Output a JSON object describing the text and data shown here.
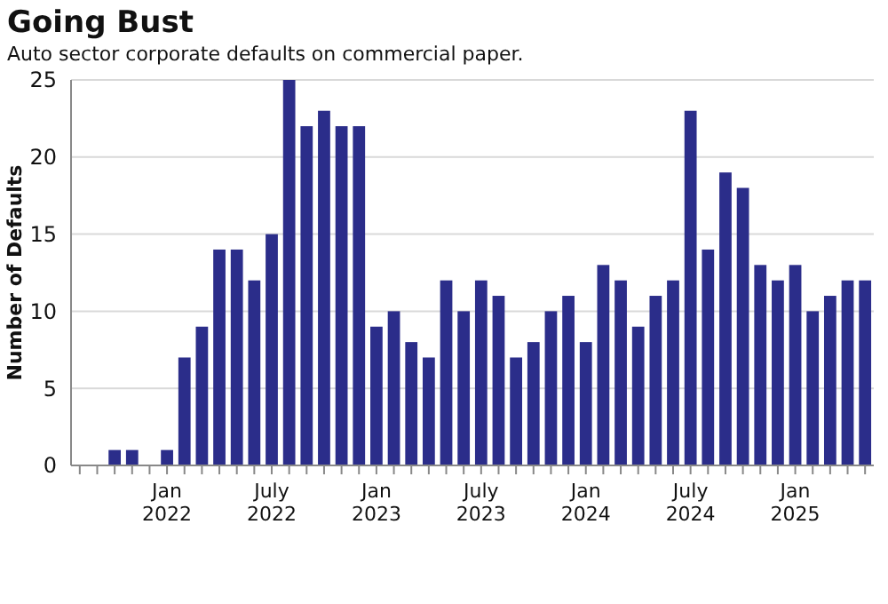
{
  "chart_data": {
    "type": "bar",
    "title": "Going Bust",
    "subtitle": "Auto sector corporate defaults on commercial paper.",
    "ylabel": "Number of Defaults",
    "categories": [
      null,
      null,
      null,
      null,
      null,
      "Jan 2022",
      null,
      null,
      null,
      null,
      null,
      "July 2022",
      null,
      null,
      null,
      null,
      null,
      "Jan 2023",
      null,
      null,
      null,
      null,
      null,
      "July 2023",
      null,
      null,
      null,
      null,
      null,
      "Jan 2024",
      null,
      null,
      null,
      null,
      null,
      "July 2024",
      null,
      null,
      null,
      null,
      null,
      "Jan 2025",
      null,
      null,
      null,
      null
    ],
    "values": [
      0,
      0,
      1,
      1,
      0,
      1,
      7,
      9,
      14,
      14,
      12,
      15,
      25,
      22,
      23,
      22,
      22,
      9,
      10,
      8,
      7,
      12,
      10,
      12,
      11,
      7,
      8,
      10,
      11,
      8,
      13,
      12,
      9,
      11,
      12,
      23,
      14,
      19,
      18,
      13,
      12,
      13,
      10,
      11,
      12,
      12
    ],
    "color": "#2b2d8a",
    "ylim": [
      0,
      25
    ],
    "yticks": [
      0,
      5,
      10,
      15,
      20,
      25
    ],
    "grid": "y"
  }
}
